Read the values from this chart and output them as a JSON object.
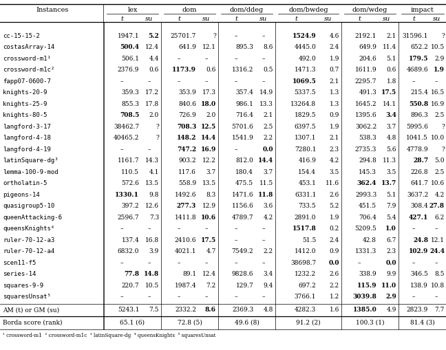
{
  "instances": [
    "cc-15-15-2",
    "costasArray-14",
    "crossword-m1¹",
    "crossword-m1c²",
    "fapp07-0600-7",
    "knights-20-9",
    "knights-25-9",
    "knights-80-5",
    "langford-3-17",
    "langford-4-18",
    "langford-4-19",
    "latinSquare-dg³",
    "lemma-100-9-mod",
    "ortholatin-5",
    "pigeons-14",
    "quasigroup5-10",
    "queenAttacking-6",
    "queensKnights⁴",
    "ruler-70-12-a3",
    "ruler-70-12-a4",
    "scen11-f5",
    "series-14",
    "squares-9-9",
    "squaresUnsat⁵"
  ],
  "group_names": [
    "lex",
    "dom",
    "dom/ddeg",
    "dom/bwdeg",
    "dom/wdeg",
    "impact"
  ],
  "group_keys": [
    "lex",
    "dom",
    "dom/ddeg",
    "dom/bwdeg",
    "dom/wdeg",
    "impact"
  ],
  "data": {
    "lex": {
      "t": [
        "1947.1",
        "500.4",
        "506.1",
        "2376.9",
        "–",
        "359.3",
        "855.3",
        "708.5",
        "38462.7",
        "40465.2",
        "–",
        "1161.7",
        "110.5",
        "572.6",
        "1330.1",
        "397.2",
        "2596.7",
        "–",
        "137.4",
        "6832.0",
        "–",
        "77.8",
        "220.7",
        "–"
      ],
      "su": [
        "5.2",
        "12.4",
        "4.4",
        "0.6",
        "–",
        "17.2",
        "17.8",
        "2.0",
        "?",
        "?",
        "–",
        "14.3",
        "4.1",
        "13.5",
        "9.8",
        "12.6",
        "7.3",
        "–",
        "16.8",
        "3.9",
        "–",
        "14.8",
        "10.5",
        "–"
      ],
      "bold_t": [
        false,
        true,
        false,
        false,
        false,
        false,
        false,
        true,
        false,
        false,
        false,
        false,
        false,
        false,
        true,
        false,
        false,
        false,
        false,
        false,
        false,
        true,
        false,
        false
      ],
      "bold_su": [
        true,
        false,
        false,
        false,
        false,
        false,
        false,
        false,
        false,
        false,
        false,
        false,
        false,
        false,
        false,
        false,
        false,
        false,
        false,
        false,
        false,
        true,
        false,
        false
      ]
    },
    "dom": {
      "t": [
        "25701.7",
        "641.9",
        "–",
        "1173.9",
        "–",
        "353.9",
        "840.6",
        "726.9",
        "708.3",
        "148.2",
        "747.2",
        "903.2",
        "117.6",
        "558.9",
        "1492.6",
        "277.3",
        "1411.8",
        "–",
        "2410.6",
        "4021.1",
        "–",
        "89.1",
        "1987.4",
        "–"
      ],
      "su": [
        "?",
        "12.1",
        "–",
        "0.6",
        "–",
        "17.3",
        "18.0",
        "2.0",
        "12.5",
        "14.4",
        "16.9",
        "12.2",
        "3.7",
        "13.5",
        "8.3",
        "12.9",
        "10.6",
        "–",
        "17.5",
        "4.7",
        "–",
        "12.4",
        "7.2",
        "–"
      ],
      "bold_t": [
        false,
        false,
        false,
        true,
        false,
        false,
        false,
        false,
        true,
        true,
        true,
        false,
        false,
        false,
        false,
        true,
        false,
        false,
        false,
        false,
        false,
        false,
        false,
        false
      ],
      "bold_su": [
        false,
        false,
        false,
        false,
        false,
        false,
        true,
        false,
        true,
        true,
        true,
        false,
        false,
        false,
        false,
        false,
        true,
        false,
        true,
        false,
        false,
        false,
        false,
        false
      ]
    },
    "dom/ddeg": {
      "t": [
        "–",
        "895.3",
        "–",
        "1316.2",
        "–",
        "357.4",
        "986.1",
        "716.4",
        "5701.6",
        "1541.9",
        "–",
        "812.0",
        "180.4",
        "475.5",
        "1471.6",
        "1156.6",
        "4789.7",
        "–",
        "–",
        "7549.2",
        "–",
        "9828.6",
        "129.7",
        "–"
      ],
      "su": [
        "–",
        "8.6",
        "–",
        "0.5",
        "–",
        "14.9",
        "13.3",
        "2.1",
        "2.5",
        "2.2",
        "0.0",
        "14.4",
        "3.7",
        "11.5",
        "11.8",
        "3.6",
        "4.2",
        "–",
        "–",
        "2.2",
        "–",
        "3.4",
        "9.4",
        "–"
      ],
      "bold_t": [
        false,
        false,
        false,
        false,
        false,
        false,
        false,
        false,
        false,
        false,
        false,
        false,
        false,
        false,
        false,
        false,
        false,
        false,
        false,
        false,
        false,
        false,
        false,
        false
      ],
      "bold_su": [
        false,
        false,
        false,
        false,
        false,
        false,
        false,
        false,
        false,
        false,
        true,
        true,
        false,
        false,
        true,
        false,
        false,
        false,
        false,
        false,
        false,
        false,
        false,
        false
      ]
    },
    "dom/bwdeg": {
      "t": [
        "1524.9",
        "4445.0",
        "492.0",
        "1471.3",
        "1069.5",
        "5337.5",
        "13264.8",
        "1829.5",
        "6397.5",
        "1307.1",
        "7280.1",
        "416.9",
        "154.4",
        "453.1",
        "6331.1",
        "733.5",
        "2891.0",
        "1517.8",
        "51.5",
        "1412.0",
        "38698.7",
        "1232.2",
        "697.2",
        "3766.1"
      ],
      "su": [
        "4.6",
        "2.4",
        "1.9",
        "0.7",
        "2.1",
        "1.3",
        "1.3",
        "0.9",
        "1.9",
        "2.1",
        "2.3",
        "4.2",
        "3.5",
        "11.6",
        "2.6",
        "5.2",
        "1.9",
        "0.2",
        "2.4",
        "0.9",
        "0.0",
        "2.6",
        "2.2",
        "1.2"
      ],
      "bold_t": [
        true,
        false,
        false,
        false,
        true,
        false,
        false,
        false,
        false,
        false,
        false,
        false,
        false,
        false,
        false,
        false,
        false,
        true,
        false,
        false,
        false,
        false,
        false,
        false
      ],
      "bold_su": [
        false,
        false,
        false,
        false,
        false,
        false,
        false,
        false,
        false,
        false,
        false,
        false,
        false,
        false,
        false,
        false,
        false,
        false,
        false,
        false,
        true,
        false,
        false,
        false
      ]
    },
    "dom/wdeg": {
      "t": [
        "2192.1",
        "649.9",
        "204.6",
        "1611.9",
        "2295.7",
        "491.3",
        "1645.2",
        "1395.6",
        "3062.2",
        "538.3",
        "2735.3",
        "294.8",
        "145.3",
        "362.4",
        "2993.3",
        "451.5",
        "706.4",
        "5209.5",
        "42.8",
        "1331.3",
        "–",
        "338.9",
        "115.9",
        "3039.8"
      ],
      "su": [
        "2.1",
        "11.4",
        "5.1",
        "0.6",
        "1.8",
        "17.5",
        "14.1",
        "3.4",
        "3.7",
        "4.8",
        "5.6",
        "11.3",
        "3.5",
        "13.7",
        "5.1",
        "7.9",
        "5.4",
        "1.0",
        "6.7",
        "2.3",
        "0.0",
        "9.9",
        "11.0",
        "2.9"
      ],
      "bold_t": [
        false,
        false,
        false,
        false,
        false,
        false,
        false,
        false,
        false,
        false,
        false,
        false,
        false,
        true,
        false,
        false,
        false,
        false,
        false,
        false,
        false,
        false,
        true,
        true
      ],
      "bold_su": [
        false,
        false,
        false,
        false,
        false,
        true,
        false,
        true,
        false,
        false,
        false,
        false,
        false,
        true,
        false,
        false,
        false,
        true,
        false,
        false,
        true,
        false,
        true,
        true
      ]
    },
    "impact": {
      "t": [
        "31596.1",
        "652.2",
        "179.5",
        "4689.6",
        "–",
        "215.4",
        "550.8",
        "896.3",
        "5995.6",
        "1041.5",
        "4778.9",
        "28.7",
        "226.8",
        "641.7",
        "3637.2",
        "308.4",
        "427.1",
        "–",
        "24.8",
        "102.9",
        "–",
        "346.5",
        "138.9",
        "–"
      ],
      "su": [
        "?",
        "10.5",
        "2.9",
        "1.9",
        "–",
        "16.5",
        "16.9",
        "2.5",
        "?",
        "10.0",
        "?",
        "5.0",
        "2.5",
        "10.6",
        "4.2",
        "27.8",
        "6.2",
        "–",
        "12.1",
        "24.4",
        "–",
        "8.5",
        "10.8",
        "–"
      ],
      "bold_t": [
        false,
        false,
        true,
        false,
        false,
        false,
        true,
        false,
        false,
        false,
        false,
        true,
        false,
        false,
        false,
        false,
        true,
        false,
        true,
        true,
        false,
        false,
        false,
        false
      ],
      "bold_su": [
        false,
        false,
        false,
        true,
        false,
        false,
        false,
        false,
        false,
        false,
        false,
        false,
        false,
        false,
        false,
        true,
        false,
        false,
        false,
        true,
        false,
        false,
        false,
        false
      ]
    }
  },
  "am_gm": {
    "label": "AM (t) or GM (su)",
    "vals": [
      [
        "5243.1",
        "7.5"
      ],
      [
        "2332.2",
        "8.6"
      ],
      [
        "2369.3",
        "4.8"
      ],
      [
        "4282.3",
        "1.6"
      ],
      [
        "1385.0",
        "4.9"
      ],
      [
        "2823.9",
        "7.7"
      ]
    ],
    "bold": [
      [
        false,
        false
      ],
      [
        false,
        true
      ],
      [
        false,
        false
      ],
      [
        false,
        false
      ],
      [
        true,
        false
      ],
      [
        false,
        false
      ]
    ]
  },
  "borda": {
    "label": "Borda score (rank)",
    "vals": [
      "65.1 (6)",
      "72.8 (5)",
      "49.6 (8)",
      "91.2 (2)",
      "100.3 (1)",
      "81.4 (3)"
    ]
  },
  "footnote": "¹ crossword-m1  ² crossword-m1c  ³ latinSquare-dg  ⁴ queensKnights  ⁵ squaresUnsat"
}
